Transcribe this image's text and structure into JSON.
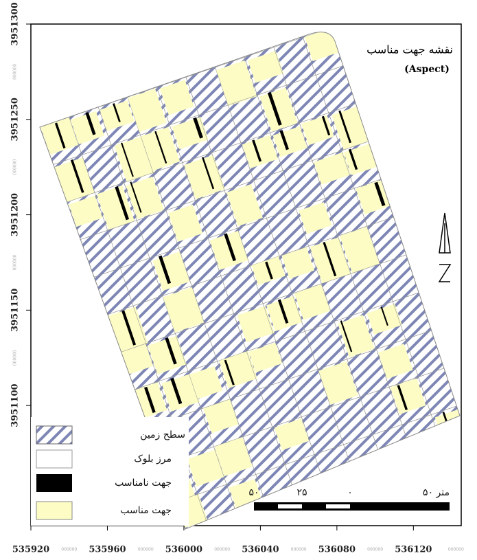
{
  "map": {
    "title": "نقشه جهت مناسب",
    "subtitle": "(Aspect)",
    "xlim": [
      535920,
      536145
    ],
    "ylim": [
      3951037,
      3951300
    ],
    "xticks": [
      535920,
      535960,
      536000,
      536040,
      536080,
      536120
    ],
    "yticks": [
      3951300,
      3951250,
      3951200,
      3951150,
      3951100
    ],
    "minor_label": "000000",
    "legend": [
      "سطح زمین",
      "مرز بلوک",
      "جهت نامناسب",
      "جهت مناسب"
    ],
    "scale_labels": [
      "۵۰",
      "۲۵",
      "۰",
      "۵۰ متر"
    ]
  }
}
